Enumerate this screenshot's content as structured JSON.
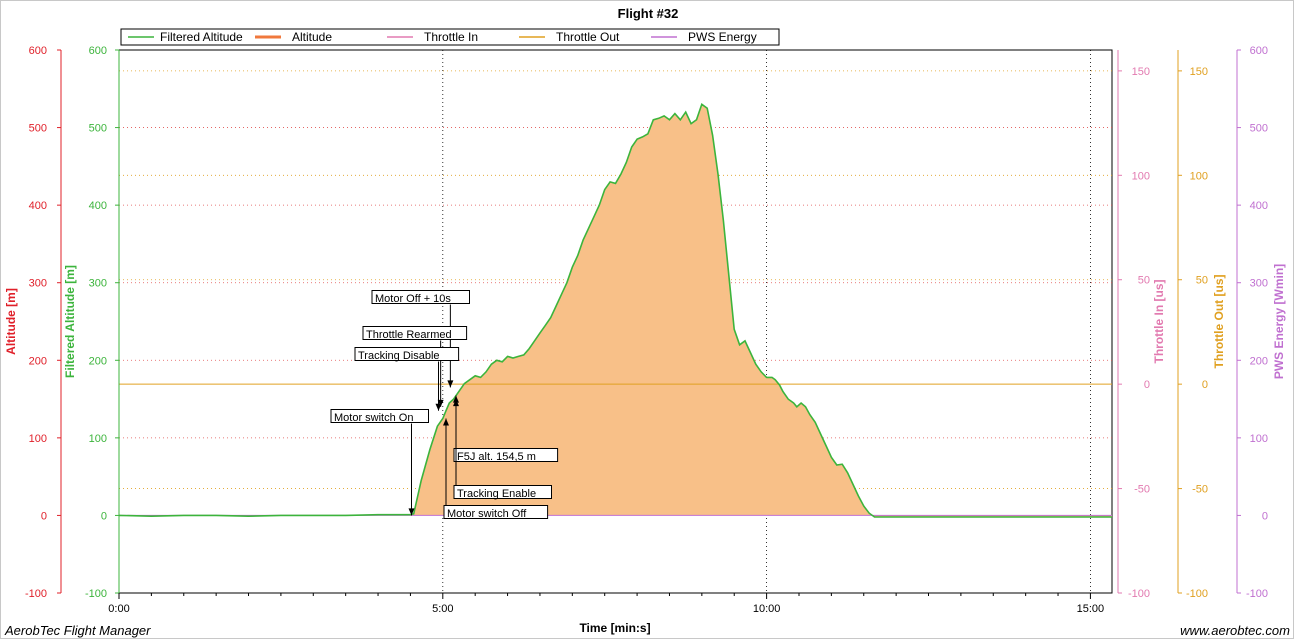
{
  "chart_data": {
    "type": "area",
    "title": "Flight #32",
    "xlabel": "Time [min:s]",
    "footer_left": "AerobTec Flight Manager",
    "footer_right": "www.aerobtec.com",
    "x_ticks": [
      "0:00",
      "5:00",
      "10:00",
      "15:00"
    ],
    "x_range_seconds": [
      0,
      920
    ],
    "legend": [
      {
        "name": "Filtered Altitude",
        "color": "#3cb43c"
      },
      {
        "name": "Altitude",
        "color": "#f0783c"
      },
      {
        "name": "Throttle In",
        "color": "#e27ab0"
      },
      {
        "name": "Throttle Out",
        "color": "#e0a020"
      },
      {
        "name": "PWS Energy",
        "color": "#c070d0"
      }
    ],
    "axes": {
      "altitude": {
        "label": "Altitude [m]",
        "color": "#e0202a",
        "range": [
          -100,
          600
        ],
        "ticks": [
          "-100",
          "0",
          "100",
          "200",
          "300",
          "400",
          "500",
          "600"
        ]
      },
      "filtered_altitude": {
        "label": "Filtered Altitude [m]",
        "color": "#3cb43c",
        "range": [
          -100,
          600
        ],
        "ticks": [
          "-100",
          "0",
          "100",
          "200",
          "300",
          "400",
          "500",
          "600"
        ]
      },
      "throttle_in": {
        "label": "Throttle In [us]",
        "color": "#e27ab0",
        "range": [
          -100,
          160
        ],
        "ticks": [
          "-100",
          "-50",
          "0",
          "50",
          "100",
          "150"
        ]
      },
      "throttle_out": {
        "label": "Throttle Out [us]",
        "color": "#e0a020",
        "range": [
          -100,
          160
        ],
        "ticks": [
          "-100",
          "-50",
          "0",
          "50",
          "100",
          "150"
        ]
      },
      "pws_energy": {
        "label": "PWS Energy [Wmin]",
        "color": "#c070d0",
        "range": [
          -100,
          600
        ],
        "ticks": [
          "-100",
          "0",
          "100",
          "200",
          "300",
          "400",
          "500",
          "600"
        ]
      }
    },
    "series": [
      {
        "name": "Altitude",
        "x": [
          0,
          30,
          60,
          90,
          120,
          150,
          180,
          210,
          240,
          270,
          273,
          280,
          288,
          295,
          300,
          303,
          306,
          310,
          315,
          320,
          325,
          330,
          335,
          340,
          345,
          350,
          355,
          360,
          365,
          370,
          375,
          380,
          385,
          390,
          395,
          400,
          405,
          410,
          415,
          420,
          425,
          430,
          435,
          440,
          445,
          450,
          455,
          460,
          465,
          470,
          475,
          480,
          485,
          490,
          495,
          500,
          505,
          510,
          515,
          520,
          525,
          530,
          535,
          540,
          545,
          550,
          555,
          560,
          565,
          570,
          575,
          580,
          585,
          590,
          595,
          600,
          605,
          608,
          612,
          615,
          620,
          625,
          628,
          632,
          636,
          640,
          645,
          650,
          655,
          660,
          665,
          670,
          675,
          680,
          685,
          690,
          695,
          700,
          705,
          710,
          715,
          720,
          725,
          730,
          735,
          740,
          745,
          750,
          755,
          760,
          765,
          770,
          775,
          780,
          785,
          790,
          795,
          800,
          805,
          810,
          815,
          820,
          825,
          830,
          835,
          840,
          845,
          850,
          855,
          860,
          865,
          870,
          875,
          880,
          885,
          890,
          895,
          900,
          905,
          910,
          915,
          920
        ],
        "y": [
          0,
          -1,
          0,
          0,
          -1,
          0,
          0,
          0,
          1,
          1,
          2,
          45,
          85,
          115,
          125,
          135,
          145,
          150,
          160,
          170,
          175,
          180,
          178,
          185,
          195,
          200,
          198,
          205,
          203,
          205,
          207,
          215,
          225,
          235,
          245,
          255,
          270,
          285,
          300,
          320,
          335,
          355,
          370,
          385,
          400,
          420,
          430,
          428,
          440,
          455,
          475,
          485,
          488,
          492,
          510,
          512,
          515,
          510,
          518,
          510,
          520,
          505,
          510,
          530,
          525,
          490,
          440,
          380,
          310,
          240,
          220,
          225,
          210,
          195,
          185,
          178,
          178,
          175,
          168,
          160,
          150,
          145,
          140,
          145,
          140,
          130,
          120,
          105,
          90,
          75,
          65,
          66,
          55,
          40,
          25,
          12,
          3,
          -2,
          -2,
          -2,
          -2,
          -2,
          -2,
          -2,
          -2,
          -2,
          -2,
          -2,
          -2,
          -2,
          -2,
          -2,
          -2,
          -2,
          -2,
          -2,
          -2,
          -2,
          -2,
          -2,
          -2,
          -2,
          -2,
          -2,
          -2,
          -2,
          -2,
          -2,
          -2,
          -2,
          -2,
          -2,
          -2,
          -2,
          -2,
          -2,
          -2,
          -2,
          -2,
          -2,
          -2,
          -2
        ]
      },
      {
        "name": "Throttle Out",
        "x": [
          0,
          920
        ],
        "y": [
          0,
          0
        ]
      },
      {
        "name": "PWS Energy",
        "x": [
          0,
          920
        ],
        "y": [
          0,
          0
        ]
      }
    ],
    "annotations": [
      {
        "label": "Motor Off + 10s",
        "x": 307,
        "y": 165
      },
      {
        "label": "Throttle Rearmed",
        "x": 298,
        "y": 140
      },
      {
        "label": "Tracking Disable",
        "x": 296,
        "y": 135
      },
      {
        "label": "Motor switch On",
        "x": 271,
        "y": 0
      },
      {
        "label": "F5J alt. 154,5 m",
        "x": 307,
        "y": 154.5
      },
      {
        "label": "Tracking Enable",
        "x": 307,
        "y": 150
      },
      {
        "label": "Motor switch Off",
        "x": 297,
        "y": 125
      }
    ],
    "grid": true,
    "legend_placement": "top-left"
  }
}
